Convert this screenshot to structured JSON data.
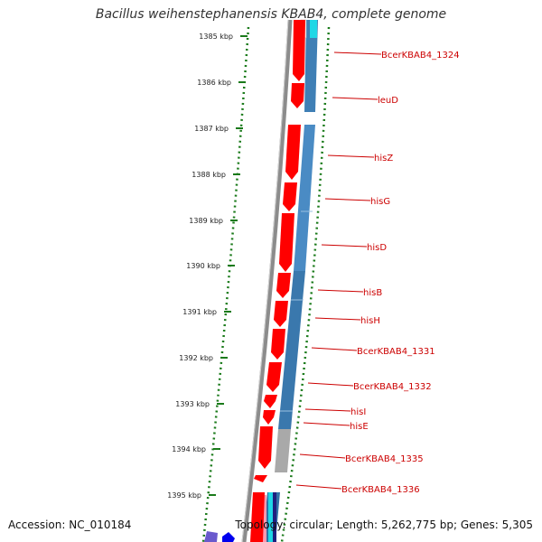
{
  "title": "Bacillus weihenstephanensis KBAB4, complete genome",
  "footer": {
    "accession": "Accession: NC_010184",
    "topology": "Topology: circular; Length: 5,262,775 bp; Genes: 5,305"
  },
  "ticks": [
    "1385 kbp",
    "1386 kbp",
    "1387 kbp",
    "1388 kbp",
    "1389 kbp",
    "1390 kbp",
    "1391 kbp",
    "1392 kbp",
    "1393 kbp",
    "1394 kbp",
    "1395 kbp"
  ],
  "genes": [
    "BcerKBAB4_1324",
    "leuD",
    "hisZ",
    "hisG",
    "hisD",
    "hisB",
    "hisH",
    "BcerKBAB4_1331",
    "BcerKBAB4_1332",
    "hisI",
    "hisE",
    "BcerKBAB4_1335",
    "BcerKBAB4_1336"
  ],
  "colors": {
    "gene_arrow": "#ff0000",
    "blast_track": "#3f7fb5",
    "backbone": "#7f7f7f",
    "tick": "#1a7a1a",
    "label": "#cc0000"
  }
}
